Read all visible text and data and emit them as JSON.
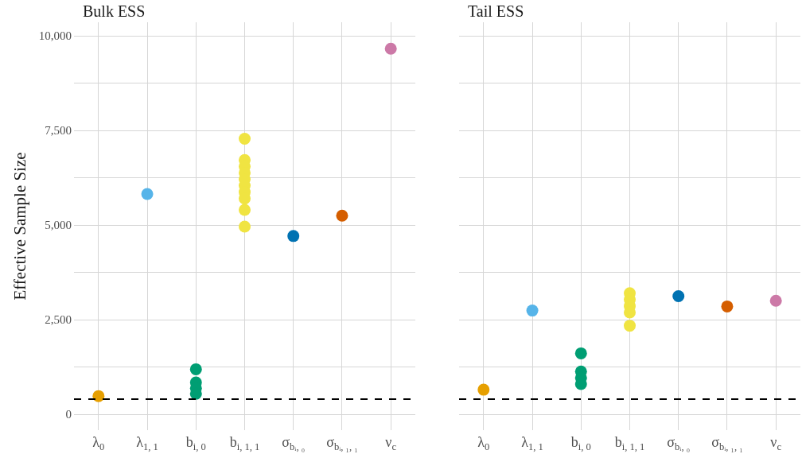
{
  "chart_data": [
    {
      "type": "scatter",
      "title": "Bulk ESS",
      "ylabel": "Effective Sample Size",
      "categories": [
        "λ$_{0}$",
        "λ$_{1, 1}$",
        "b$_{i, 0}$",
        "b$_{i, 1, 1}$",
        "σ$_{bᵢ, ₀}$",
        "σ$_{bᵢ, ₁, ₁}$",
        "ν$_{c}$"
      ],
      "series": [
        {
          "color": "#e69f00",
          "x": [
            "λ$_{0}$"
          ],
          "values": [
            480
          ]
        },
        {
          "color": "#56b4e9",
          "x": [
            "λ$_{1, 1}$"
          ],
          "values": [
            5820
          ]
        },
        {
          "color": "#009e73",
          "x": [
            "b$_{i, 0}$",
            "b$_{i, 0}$",
            "b$_{i, 0}$",
            "b$_{i, 0}$"
          ],
          "values": [
            1190,
            840,
            690,
            540
          ]
        },
        {
          "color": "#f0e442",
          "x": [
            "b$_{i, 1, 1}$",
            "b$_{i, 1, 1}$",
            "b$_{i, 1, 1}$",
            "b$_{i, 1, 1}$",
            "b$_{i, 1, 1}$",
            "b$_{i, 1, 1}$",
            "b$_{i, 1, 1}$",
            "b$_{i, 1, 1}$",
            "b$_{i, 1, 1}$",
            "b$_{i, 1, 1}$"
          ],
          "values": [
            7280,
            6720,
            6550,
            6380,
            6210,
            6040,
            5870,
            5700,
            5400,
            4960
          ]
        },
        {
          "color": "#0072b2",
          "x": [
            "σ$_{bᵢ, ₀}$"
          ],
          "values": [
            4710
          ]
        },
        {
          "color": "#d55e00",
          "x": [
            "σ$_{bᵢ, ₁, ₁}$"
          ],
          "values": [
            5250
          ]
        },
        {
          "color": "#cc79a7",
          "x": [
            "ν$_{c}$"
          ],
          "values": [
            9660
          ]
        }
      ],
      "ylim": [
        -420,
        10360
      ],
      "yticks": [
        0,
        {
          "value": 1250,
          "label": null
        },
        {
          "value": 2500,
          "label": "2,500"
        },
        {
          "value": 3750,
          "label": null
        },
        {
          "value": 5000,
          "label": "5,000"
        },
        {
          "value": 6250,
          "label": null
        },
        {
          "value": 7500,
          "label": "7,500"
        },
        {
          "value": 8750,
          "label": null
        },
        {
          "value": 10000,
          "label": "10,000"
        }
      ],
      "ref_lines": [
        {
          "axis": "y",
          "value": 400,
          "color": "#000000",
          "line_style": "dashed"
        }
      ],
      "grid": true,
      "marker": "circle"
    },
    {
      "type": "scatter",
      "title": "Tail ESS",
      "categories": [
        "λ$_{0}$",
        "λ$_{1, 1}$",
        "b$_{i, 0}$",
        "b$_{i, 1, 1}$",
        "σ$_{bᵢ, ₀}$",
        "σ$_{bᵢ, ₁, ₁}$",
        "ν$_{c}$"
      ],
      "series": [
        {
          "color": "#e69f00",
          "x": [
            "λ$_{0}$"
          ],
          "values": [
            650
          ]
        },
        {
          "color": "#56b4e9",
          "x": [
            "λ$_{1, 1}$"
          ],
          "values": [
            2740
          ]
        },
        {
          "color": "#009e73",
          "x": [
            "b$_{i, 0}$",
            "b$_{i, 0}$",
            "b$_{i, 0}$",
            "b$_{i, 0}$"
          ],
          "values": [
            1610,
            1130,
            960,
            800
          ]
        },
        {
          "color": "#f0e442",
          "x": [
            "b$_{i, 1, 1}$",
            "b$_{i, 1, 1}$",
            "b$_{i, 1, 1}$",
            "b$_{i, 1, 1}$",
            "b$_{i, 1, 1}$"
          ],
          "values": [
            3200,
            3030,
            2860,
            2690,
            2340
          ]
        },
        {
          "color": "#0072b2",
          "x": [
            "σ$_{bᵢ, ₀}$"
          ],
          "values": [
            3120
          ]
        },
        {
          "color": "#d55e00",
          "x": [
            "σ$_{bᵢ, ₁, ₁}$"
          ],
          "values": [
            2850
          ]
        },
        {
          "color": "#cc79a7",
          "x": [
            "ν$_{c}$"
          ],
          "values": [
            3000
          ]
        }
      ],
      "ylim": [
        -420,
        10360
      ],
      "yticks": [
        {
          "value": 0,
          "label": null
        },
        {
          "value": 1250,
          "label": null
        },
        {
          "value": 2500,
          "label": null
        },
        {
          "value": 3750,
          "label": null
        },
        {
          "value": 5000,
          "label": null
        },
        {
          "value": 6250,
          "label": null
        },
        {
          "value": 7500,
          "label": null
        },
        {
          "value": 8750,
          "label": null
        },
        {
          "value": 10000,
          "label": null
        }
      ],
      "ref_lines": [
        {
          "axis": "y",
          "value": 400,
          "color": "#000000",
          "line_style": "dashed"
        }
      ],
      "grid": true,
      "marker": "circle",
      "tick_labels": "x"
    }
  ]
}
